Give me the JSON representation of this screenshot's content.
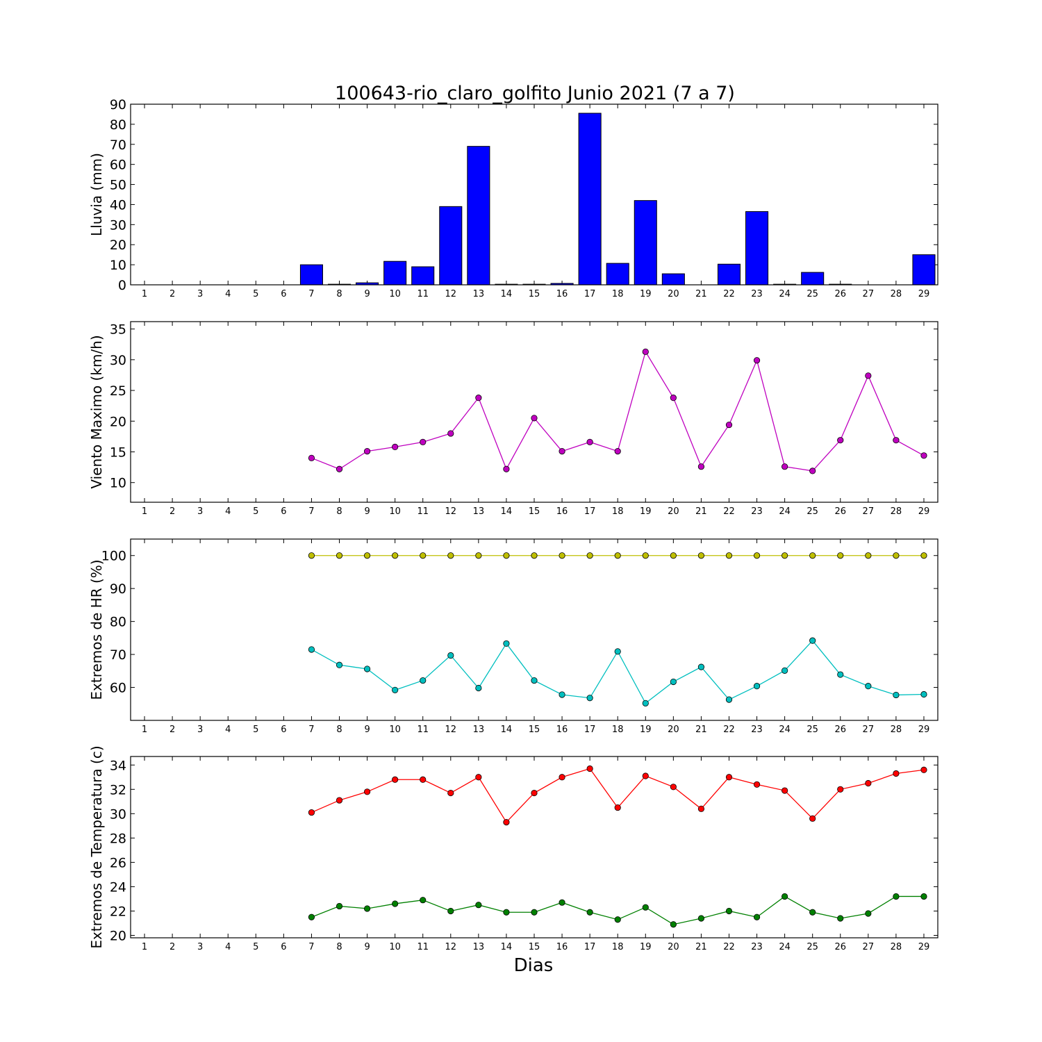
{
  "title": "100643-rio_claro_golfito Junio 2021  (7 a 7)",
  "xlabel": "Dias",
  "chart_data": [
    {
      "type": "bar",
      "ylabel": "Lluvia (mm)",
      "ylim": [
        0,
        90
      ],
      "yticks": [
        0,
        10,
        20,
        30,
        40,
        50,
        60,
        70,
        80,
        90
      ],
      "x_ticks": [
        1,
        2,
        3,
        4,
        5,
        6,
        7,
        8,
        9,
        10,
        11,
        12,
        13,
        14,
        15,
        16,
        17,
        18,
        19,
        20,
        21,
        22,
        23,
        24,
        25,
        26,
        27,
        28,
        29
      ],
      "series": [
        {
          "color": "#0000ff",
          "x": [
            7,
            8,
            9,
            10,
            11,
            12,
            13,
            14,
            15,
            16,
            17,
            18,
            19,
            20,
            21,
            22,
            23,
            24,
            25,
            26,
            27,
            28,
            29
          ],
          "values": [
            10.0,
            0.3,
            1.0,
            11.7,
            9.0,
            39.0,
            69.0,
            0.3,
            0.3,
            0.7,
            85.5,
            10.7,
            42.0,
            5.5,
            0,
            10.3,
            36.5,
            0.3,
            6.2,
            0.3,
            0,
            0,
            15.0
          ]
        }
      ]
    },
    {
      "type": "line",
      "ylabel": "Viento Maximo (km/h)",
      "ylim": [
        6.8,
        36.2
      ],
      "yticks": [
        10,
        15,
        20,
        25,
        30,
        35
      ],
      "x_ticks": [
        1,
        2,
        3,
        4,
        5,
        6,
        7,
        8,
        9,
        10,
        11,
        12,
        13,
        14,
        15,
        16,
        17,
        18,
        19,
        20,
        21,
        22,
        23,
        24,
        25,
        26,
        27,
        28,
        29
      ],
      "series": [
        {
          "color": "#bf00bf",
          "x": [
            7,
            8,
            9,
            10,
            11,
            12,
            13,
            14,
            15,
            16,
            17,
            18,
            19,
            20,
            21,
            22,
            23,
            24,
            25,
            26,
            27,
            28,
            29
          ],
          "values": [
            14.0,
            12.2,
            15.1,
            15.8,
            16.6,
            18.0,
            23.8,
            12.2,
            20.5,
            15.1,
            16.6,
            15.1,
            31.3,
            23.8,
            12.6,
            19.4,
            29.9,
            12.6,
            11.9,
            16.9,
            27.4,
            16.9,
            14.4
          ]
        }
      ]
    },
    {
      "type": "line",
      "ylabel": "Extremos de HR (%)",
      "ylim": [
        50,
        105
      ],
      "yticks": [
        60,
        70,
        80,
        90,
        100
      ],
      "x_ticks": [
        1,
        2,
        3,
        4,
        5,
        6,
        7,
        8,
        9,
        10,
        11,
        12,
        13,
        14,
        15,
        16,
        17,
        18,
        19,
        20,
        21,
        22,
        23,
        24,
        25,
        26,
        27,
        28,
        29
      ],
      "series": [
        {
          "color": "#bfbf00",
          "x": [
            7,
            8,
            9,
            10,
            11,
            12,
            13,
            14,
            15,
            16,
            17,
            18,
            19,
            20,
            21,
            22,
            23,
            24,
            25,
            26,
            27,
            28,
            29
          ],
          "values": [
            100,
            100,
            100,
            100,
            100,
            100,
            100,
            100,
            100,
            100,
            100,
            100,
            100,
            100,
            100,
            100,
            100,
            100,
            100,
            100,
            100,
            100,
            100
          ]
        },
        {
          "color": "#00bfbf",
          "x": [
            7,
            8,
            9,
            10,
            11,
            12,
            13,
            14,
            15,
            16,
            17,
            18,
            19,
            20,
            21,
            22,
            23,
            24,
            25,
            26,
            27,
            28,
            29
          ],
          "values": [
            71.5,
            66.8,
            65.6,
            59.2,
            62.1,
            69.7,
            59.8,
            73.3,
            62.1,
            57.8,
            56.8,
            70.9,
            55.2,
            61.7,
            66.2,
            56.3,
            60.4,
            65.1,
            74.2,
            63.9,
            60.4,
            57.7,
            57.9
          ]
        }
      ]
    },
    {
      "type": "line",
      "ylabel": "Extremos de Temperatura (c)",
      "ylim": [
        19.8,
        34.7
      ],
      "yticks": [
        20,
        22,
        24,
        26,
        28,
        30,
        32,
        34
      ],
      "x_ticks": [
        1,
        2,
        3,
        4,
        5,
        6,
        7,
        8,
        9,
        10,
        11,
        12,
        13,
        14,
        15,
        16,
        17,
        18,
        19,
        20,
        21,
        22,
        23,
        24,
        25,
        26,
        27,
        28,
        29
      ],
      "series": [
        {
          "color": "#ff0000",
          "x": [
            7,
            8,
            9,
            10,
            11,
            12,
            13,
            14,
            15,
            16,
            17,
            18,
            19,
            20,
            21,
            22,
            23,
            24,
            25,
            26,
            27,
            28,
            29
          ],
          "values": [
            30.1,
            31.1,
            31.8,
            32.8,
            32.8,
            31.7,
            33.0,
            29.3,
            31.7,
            33.0,
            33.7,
            30.5,
            33.1,
            32.2,
            30.4,
            33.0,
            32.4,
            31.9,
            29.6,
            32.0,
            32.5,
            33.3,
            33.6
          ]
        },
        {
          "color": "#008000",
          "x": [
            7,
            8,
            9,
            10,
            11,
            12,
            13,
            14,
            15,
            16,
            17,
            18,
            19,
            20,
            21,
            22,
            23,
            24,
            25,
            26,
            27,
            28,
            29
          ],
          "values": [
            21.5,
            22.4,
            22.2,
            22.6,
            22.9,
            22.0,
            22.5,
            21.9,
            21.9,
            22.7,
            21.9,
            21.3,
            22.3,
            20.9,
            21.4,
            22.0,
            21.5,
            23.2,
            21.9,
            21.4,
            21.8,
            23.2,
            23.2
          ]
        }
      ]
    }
  ]
}
